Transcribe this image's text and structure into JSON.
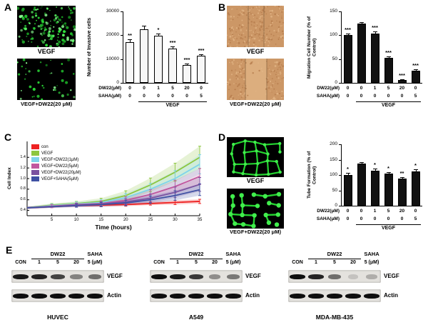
{
  "panels": {
    "A": {
      "label": "A",
      "images": [
        {
          "caption": "VEGF",
          "content": "fluorescence-invasive-cells-dense"
        },
        {
          "caption": "VEGF+DW22(20 μM)",
          "content": "fluorescence-invasive-cells-sparse"
        }
      ]
    },
    "B": {
      "label": "B",
      "images": [
        {
          "caption": "VEGF",
          "content": "brightfield-scratch-wound-migrated"
        },
        {
          "caption": "VEGF+DW22(20 μM)",
          "content": "brightfield-scratch-wound-open"
        }
      ]
    },
    "C": {
      "label": "C"
    },
    "D": {
      "label": "D",
      "images": [
        {
          "caption": "VEGF",
          "content": "fluorescence-tube-network-intact"
        },
        {
          "caption": "VEGF+DW22(20 μM)",
          "content": "fluorescence-tube-network-disrupted"
        }
      ]
    },
    "E": {
      "label": "E",
      "blots": [
        {
          "cell_line": "HUVEC",
          "dose_group": "DW22",
          "saha_group": "SAHA",
          "lanes": [
            "CON",
            "1",
            "5",
            "20",
            "5 (μM)"
          ],
          "rows": [
            {
              "label": "VEGF",
              "intensities": [
                0.95,
                0.9,
                0.75,
                0.45,
                0.55
              ]
            },
            {
              "label": "Actin",
              "intensities": [
                1,
                1,
                1,
                1,
                1
              ]
            }
          ]
        },
        {
          "cell_line": "A549",
          "dose_group": "DW22",
          "saha_group": "SAHA",
          "lanes": [
            "CON",
            "1",
            "5",
            "20",
            "5 (μM)"
          ],
          "rows": [
            {
              "label": "VEGF",
              "intensities": [
                1,
                0.95,
                0.8,
                0.4,
                0.5
              ]
            },
            {
              "label": "Actin",
              "intensities": [
                1,
                1,
                1,
                1,
                1
              ]
            }
          ]
        },
        {
          "cell_line": "MDA-MB-435",
          "dose_group": "DW22",
          "saha_group": "SAHA",
          "lanes": [
            "CON",
            "1",
            "5",
            "20",
            "5 (μM)"
          ],
          "rows": [
            {
              "label": "VEGF",
              "intensities": [
                1,
                0.9,
                0.55,
                0.15,
                0.25
              ]
            },
            {
              "label": "Actin",
              "intensities": [
                1,
                1,
                1,
                1,
                1
              ]
            }
          ]
        }
      ]
    }
  },
  "chart_data": [
    {
      "id": "invasion",
      "panel": "A",
      "type": "bar",
      "ylabel": "Number of Invasive cells",
      "ylim": [
        0,
        30000
      ],
      "yticks": [
        0,
        10000,
        20000,
        30000
      ],
      "values": [
        17000,
        22500,
        19800,
        14500,
        7500,
        11500
      ],
      "errors": [
        1200,
        1600,
        900,
        800,
        700,
        600
      ],
      "sig": [
        "**",
        "",
        "*",
        "***",
        "***",
        "***"
      ],
      "bar_fill": "#f7f7f7",
      "x_rows": [
        {
          "label": "DW22(μM)",
          "values": [
            "0",
            "0",
            "1",
            "5",
            "20",
            "0"
          ]
        },
        {
          "label": "SAHA(μM)",
          "values": [
            "0",
            "0",
            "0",
            "0",
            "0",
            "5"
          ]
        }
      ],
      "group": {
        "label": "VEGF",
        "from": 1,
        "to": 5
      }
    },
    {
      "id": "migration",
      "panel": "B",
      "type": "bar",
      "ylabel": "Migration Cell Number (% of Control)",
      "ylim": [
        0,
        150
      ],
      "yticks": [
        0,
        50,
        100,
        150
      ],
      "values": [
        100,
        124,
        104,
        52,
        6,
        25
      ],
      "errors": [
        3,
        3,
        4,
        3,
        2,
        3
      ],
      "sig": [
        "***",
        "",
        "***",
        "***",
        "***",
        "***"
      ],
      "bar_fill": "#111111",
      "x_rows": [
        {
          "label": "DW22(μM)",
          "values": [
            "0",
            "0",
            "1",
            "5",
            "20",
            "0"
          ]
        },
        {
          "label": "SAHA(μM)",
          "values": [
            "0",
            "0",
            "0",
            "0",
            "0",
            "5"
          ]
        }
      ],
      "group": {
        "label": "VEGF",
        "from": 1,
        "to": 5
      }
    },
    {
      "id": "proliferation",
      "panel": "C",
      "type": "line",
      "xlabel": "Time (hours)",
      "ylabel": "Cell Index",
      "xlim": [
        0,
        35
      ],
      "xticks": [
        5,
        10,
        15,
        20,
        25,
        30,
        35
      ],
      "ylim": [
        0.3,
        1.7
      ],
      "yticks": [
        0.4,
        0.6,
        0.8,
        1.0,
        1.2,
        1.4
      ],
      "legend_position": "top-left",
      "x": [
        0,
        5,
        10,
        15,
        20,
        25,
        30,
        35
      ],
      "series": [
        {
          "name": "con",
          "color": "#ee2222",
          "values": [
            0.45,
            0.47,
            0.49,
            0.5,
            0.51,
            0.53,
            0.55,
            0.57
          ],
          "errors": [
            0.02,
            0.02,
            0.02,
            0.03,
            0.03,
            0.03,
            0.04,
            0.04
          ]
        },
        {
          "name": "VEGF",
          "color": "#8dc63f",
          "values": [
            0.45,
            0.5,
            0.53,
            0.57,
            0.68,
            0.88,
            1.12,
            1.4
          ],
          "errors": [
            0.02,
            0.03,
            0.04,
            0.06,
            0.09,
            0.13,
            0.17,
            0.21
          ]
        },
        {
          "name": "VEGF+DW22(1μM)",
          "color": "#7fd4ea",
          "values": [
            0.45,
            0.49,
            0.52,
            0.55,
            0.64,
            0.8,
            1.0,
            1.27
          ],
          "errors": [
            0.02,
            0.03,
            0.04,
            0.05,
            0.08,
            0.11,
            0.15,
            0.18
          ]
        },
        {
          "name": "VEGF+DW22(5μM)",
          "color": "#c0579e",
          "values": [
            0.45,
            0.48,
            0.51,
            0.53,
            0.59,
            0.7,
            0.85,
            1.04
          ],
          "errors": [
            0.02,
            0.03,
            0.03,
            0.05,
            0.07,
            0.09,
            0.12,
            0.15
          ]
        },
        {
          "name": "VEGF+DW22(20μM)",
          "color": "#7b52a0",
          "values": [
            0.45,
            0.47,
            0.5,
            0.52,
            0.56,
            0.63,
            0.74,
            0.89
          ],
          "errors": [
            0.02,
            0.02,
            0.03,
            0.04,
            0.06,
            0.08,
            0.1,
            0.13
          ]
        },
        {
          "name": "VEGF+SAHA(5μM)",
          "color": "#3f51a3",
          "values": [
            0.45,
            0.47,
            0.49,
            0.51,
            0.54,
            0.6,
            0.68,
            0.79
          ],
          "errors": [
            0.02,
            0.02,
            0.03,
            0.04,
            0.05,
            0.07,
            0.09,
            0.11
          ]
        }
      ]
    },
    {
      "id": "tube_formation",
      "panel": "D",
      "type": "bar",
      "ylabel": "Tube Formation (% of Control)",
      "ylim": [
        0,
        200
      ],
      "yticks": [
        0,
        50,
        100,
        150,
        200
      ],
      "values": [
        100,
        137,
        114,
        104,
        88,
        111
      ],
      "errors": [
        6,
        6,
        7,
        5,
        4,
        8
      ],
      "sig": [
        "*",
        "",
        "*",
        "*",
        "**",
        "*"
      ],
      "bar_fill": "#111111",
      "x_rows": [
        {
          "label": "DW22(μM)",
          "values": [
            "0",
            "0",
            "1",
            "5",
            "20",
            "0"
          ]
        },
        {
          "label": "SAHA(μM)",
          "values": [
            "0",
            "0",
            "0",
            "0",
            "0",
            "5"
          ]
        }
      ],
      "group": {
        "label": "VEGF",
        "from": 1,
        "to": 5
      }
    }
  ]
}
